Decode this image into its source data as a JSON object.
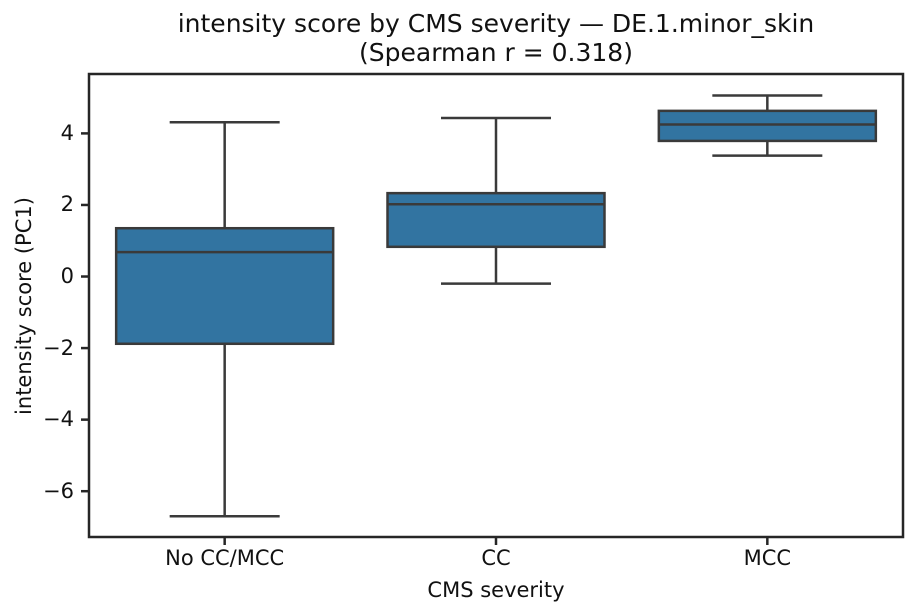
{
  "chart_data": {
    "type": "box",
    "title": "intensity score by CMS severity — DE.1.minor_skin",
    "subtitle": "(Spearman r = 0.318)",
    "xlabel": "CMS severity",
    "ylabel": "intensity score (PC1)",
    "categories": [
      "No CC/MCC",
      "CC",
      "MCC"
    ],
    "series": [
      {
        "category": "No CC/MCC",
        "whisker_low": -6.7,
        "q1": -1.88,
        "median": 0.68,
        "q3": 1.35,
        "whisker_high": 4.31
      },
      {
        "category": "CC",
        "whisker_low": -0.2,
        "q1": 0.83,
        "median": 2.02,
        "q3": 2.33,
        "whisker_high": 4.43
      },
      {
        "category": "MCC",
        "whisker_low": 3.38,
        "q1": 3.79,
        "median": 4.25,
        "q3": 4.63,
        "whisker_high": 5.06
      }
    ],
    "yticks": [
      4,
      2,
      0,
      -2,
      -4,
      -6
    ],
    "ylim": [
      -7.28,
      5.66
    ],
    "grid": false,
    "legend": "none",
    "colors": {
      "box_fill": "#3274a1",
      "box_line": "#3a3a3a",
      "spine": "#262626",
      "text": "#111111"
    }
  }
}
